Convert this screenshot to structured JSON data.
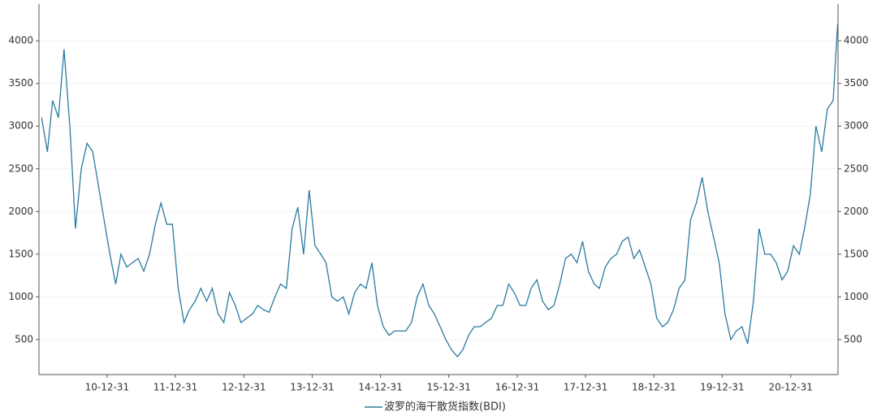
{
  "chart_data": {
    "type": "line",
    "x": [
      "10-01-15",
      "10-02-15",
      "10-03-15",
      "10-04-15",
      "10-05-15",
      "10-06-15",
      "10-07-15",
      "10-08-15",
      "10-09-15",
      "10-10-15",
      "10-11-15",
      "10-12-15",
      "11-01-15",
      "11-02-15",
      "11-03-15",
      "11-04-15",
      "11-05-15",
      "11-06-15",
      "11-07-15",
      "11-08-15",
      "11-09-15",
      "11-10-15",
      "11-11-15",
      "11-12-15",
      "12-01-15",
      "12-02-15",
      "12-03-15",
      "12-04-15",
      "12-05-15",
      "12-06-15",
      "12-07-15",
      "12-08-15",
      "12-09-15",
      "12-10-15",
      "12-11-15",
      "12-12-15",
      "13-01-15",
      "13-02-15",
      "13-03-15",
      "13-04-15",
      "13-05-15",
      "13-06-15",
      "13-07-15",
      "13-08-15",
      "13-09-15",
      "13-10-15",
      "13-11-15",
      "13-12-15",
      "14-01-15",
      "14-02-15",
      "14-03-15",
      "14-04-15",
      "14-05-15",
      "14-06-15",
      "14-07-15",
      "14-08-15",
      "14-09-15",
      "14-10-15",
      "14-11-15",
      "14-12-15",
      "15-01-15",
      "15-02-15",
      "15-03-15",
      "15-04-15",
      "15-05-15",
      "15-06-15",
      "15-07-15",
      "15-08-15",
      "15-09-15",
      "15-10-15",
      "15-11-15",
      "15-12-15",
      "16-01-15",
      "16-02-15",
      "16-03-15",
      "16-04-15",
      "16-05-15",
      "16-06-15",
      "16-07-15",
      "16-08-15",
      "16-09-15",
      "16-10-15",
      "16-11-15",
      "16-12-15",
      "17-01-15",
      "17-02-15",
      "17-03-15",
      "17-04-15",
      "17-05-15",
      "17-06-15",
      "17-07-15",
      "17-08-15",
      "17-09-15",
      "17-10-15",
      "17-11-15",
      "17-12-15",
      "18-01-15",
      "18-02-15",
      "18-03-15",
      "18-04-15",
      "18-05-15",
      "18-06-15",
      "18-07-15",
      "18-08-15",
      "18-09-15",
      "18-10-15",
      "18-11-15",
      "18-12-15",
      "19-01-15",
      "19-02-15",
      "19-03-15",
      "19-04-15",
      "19-05-15",
      "19-06-15",
      "19-07-15",
      "19-08-15",
      "19-09-15",
      "19-10-15",
      "19-11-15",
      "19-12-15",
      "20-01-15",
      "20-02-15",
      "20-03-15",
      "20-04-15",
      "20-05-15",
      "20-06-15",
      "20-07-15",
      "20-08-15",
      "20-09-15",
      "20-10-15",
      "20-11-15",
      "20-12-15",
      "21-01-15",
      "21-02-15",
      "21-03-15",
      "21-04-15",
      "21-05-15",
      "21-06-15",
      "21-07-15",
      "21-08-15",
      "21-09-08"
    ],
    "series": [
      {
        "name": "波罗的海干散货指数(BDI)",
        "color": "#2a7aa0",
        "values": [
          3100,
          2700,
          3300,
          3100,
          3900,
          3000,
          1800,
          2500,
          2800,
          2700,
          2300,
          1900,
          1500,
          1150,
          1500,
          1350,
          1400,
          1450,
          1300,
          1500,
          1850,
          2100,
          1850,
          1850,
          1100,
          700,
          850,
          950,
          1100,
          950,
          1100,
          800,
          700,
          1050,
          900,
          700,
          750,
          800,
          900,
          850,
          820,
          1000,
          1150,
          1100,
          1800,
          2050,
          1500,
          2250,
          1600,
          1500,
          1400,
          1000,
          950,
          1000,
          800,
          1050,
          1150,
          1100,
          1400,
          900,
          650,
          550,
          600,
          600,
          600,
          700,
          1000,
          1150,
          900,
          800,
          650,
          500,
          380,
          300,
          380,
          550,
          650,
          650,
          700,
          750,
          900,
          900,
          1150,
          1050,
          900,
          900,
          1100,
          1200,
          950,
          850,
          900,
          1150,
          1450,
          1500,
          1400,
          1650,
          1300,
          1150,
          1100,
          1350,
          1450,
          1500,
          1650,
          1700,
          1450,
          1550,
          1350,
          1150,
          750,
          650,
          700,
          850,
          1100,
          1200,
          1900,
          2100,
          2400,
          2000,
          1700,
          1400,
          800,
          500,
          600,
          650,
          450,
          950,
          1800,
          1500,
          1500,
          1400,
          1200,
          1300,
          1600,
          1500,
          1800,
          2200,
          3000,
          2700,
          3200,
          3300,
          4200
        ]
      }
    ],
    "xlim": [
      "10-01-01",
      "21-09-10"
    ],
    "xticks": [
      "10-12-31",
      "11-12-31",
      "12-12-31",
      "13-12-31",
      "14-12-31",
      "15-12-31",
      "16-12-31",
      "17-12-31",
      "18-12-31",
      "19-12-31",
      "20-12-31"
    ],
    "ylim": [
      90,
      4430
    ],
    "yticks": [
      500,
      1000,
      1500,
      2000,
      2500,
      3000,
      3500,
      4000
    ],
    "y2lim": [
      90,
      4430
    ],
    "y2ticks": [
      500,
      1000,
      1500,
      2000,
      2500,
      3000,
      3500,
      4000
    ],
    "grid": true,
    "legend": "bottom"
  }
}
